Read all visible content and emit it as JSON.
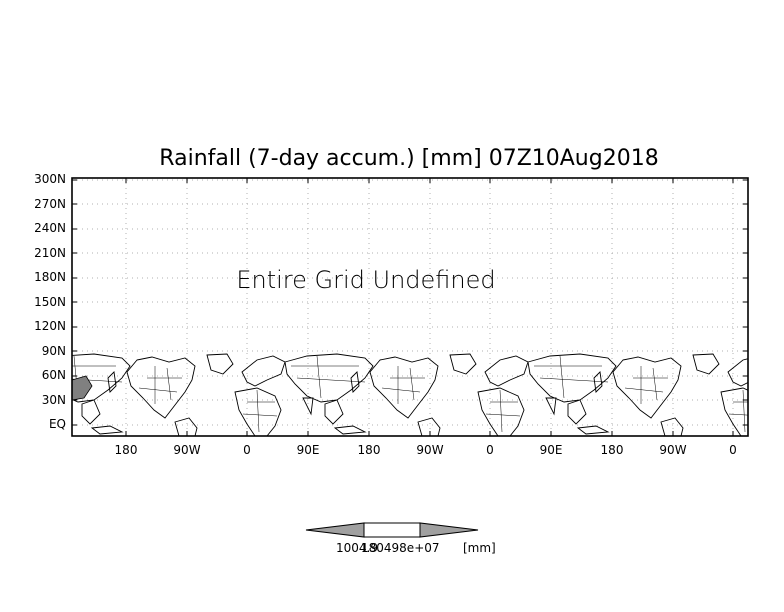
{
  "title": "Rainfall (7-day accum.) [mm] 07Z10Aug2018",
  "message": "Entire Grid Undefined",
  "lat_labels": [
    "300N",
    "270N",
    "240N",
    "210N",
    "180N",
    "150N",
    "120N",
    "90N",
    "60N",
    "30N",
    "EQ"
  ],
  "lon_labels": [
    "180",
    "90W",
    "0",
    "90E",
    "180",
    "90W",
    "0",
    "90E",
    "180",
    "90W",
    "0"
  ],
  "colorbar": {
    "value_label": "1004.9",
    "overlap_label": "180498e+07",
    "unit_label": "[mm]",
    "colors": {
      "ends": "#a0a0a0",
      "center": "#ffffff",
      "land": "#808080"
    }
  },
  "map": {
    "grid": "dotted",
    "coastlines": "repeated world map, 3 copies",
    "lat_range": [
      "EQ",
      "300N"
    ]
  }
}
